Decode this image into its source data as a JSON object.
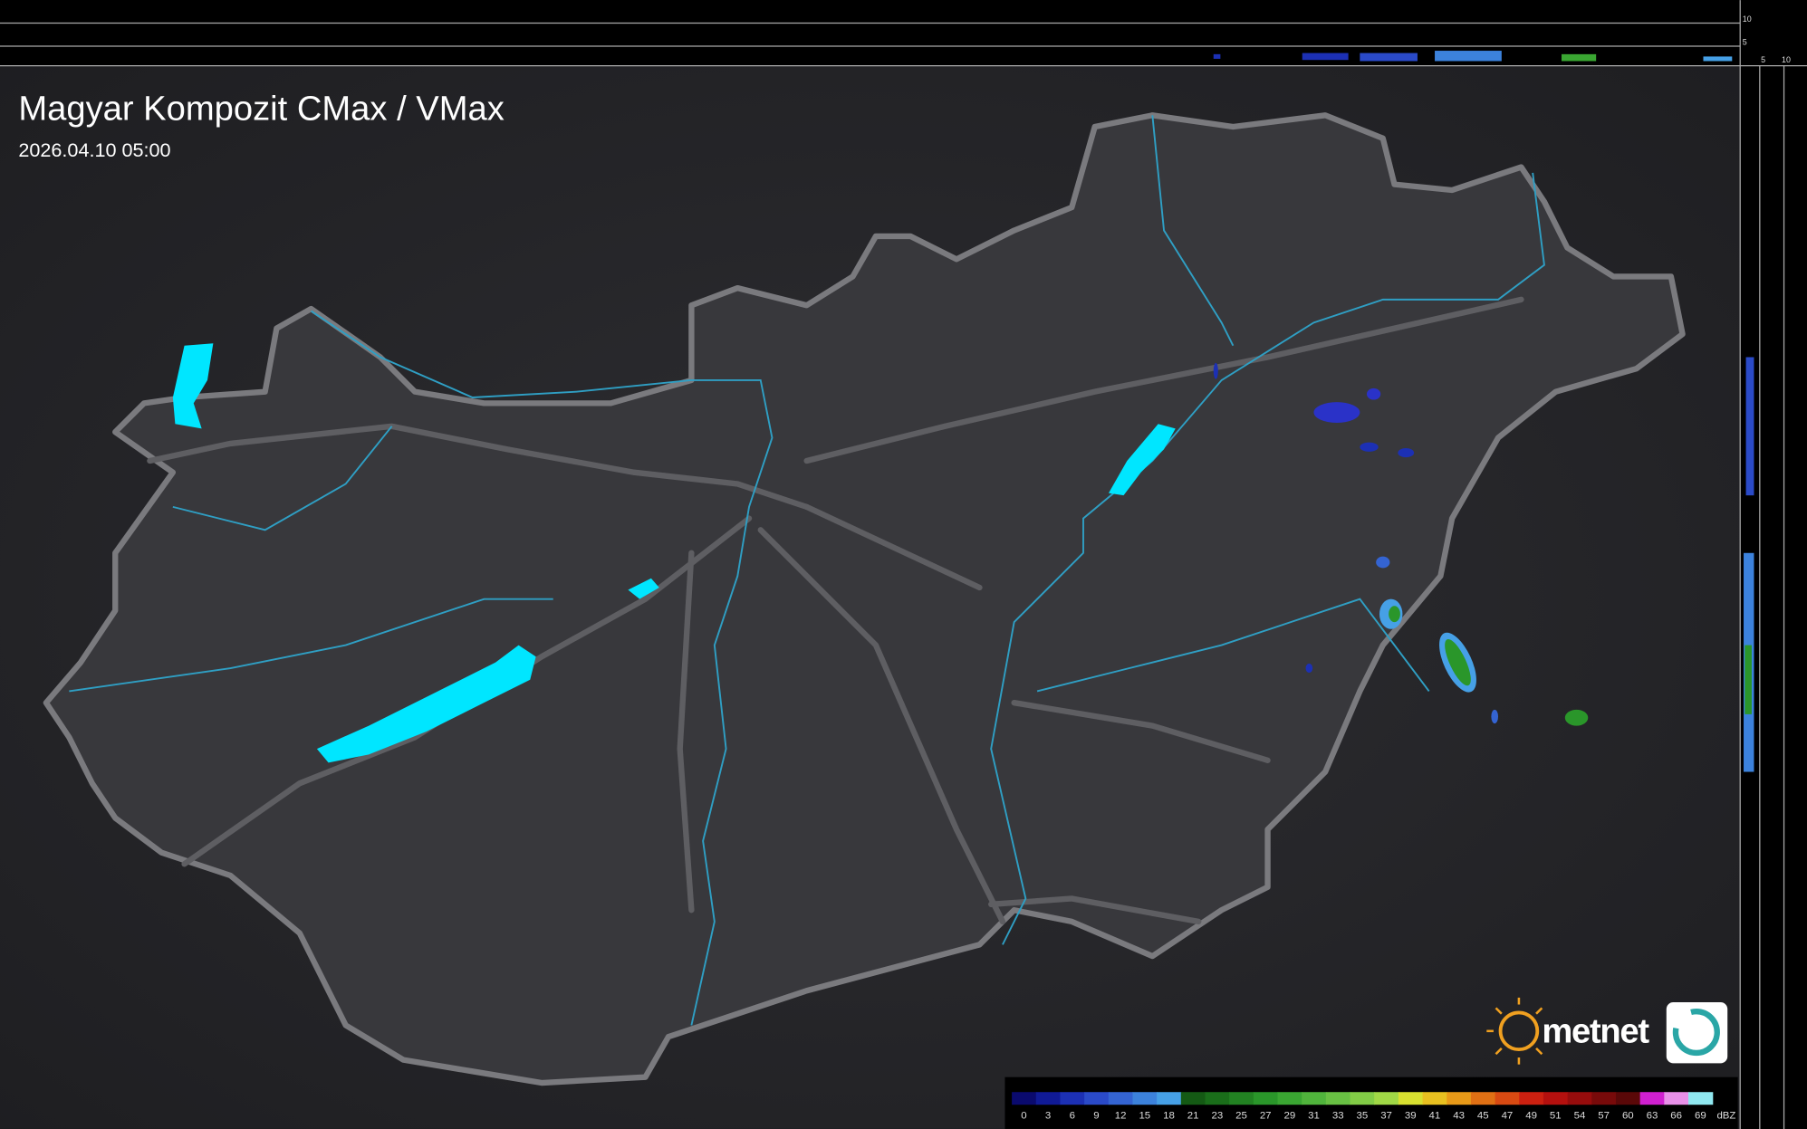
{
  "header": {
    "title": "Magyar Kompozit CMax / VMax",
    "timestamp": "2026.04.10 05:00"
  },
  "profile": {
    "top_ticks": [
      "10",
      "5"
    ],
    "right_ticks": [
      "5",
      "10"
    ]
  },
  "logo": {
    "text": "metnet"
  },
  "legend": {
    "unit": "dBZ",
    "steps": [
      {
        "value": 0,
        "color": "#0a0a6e"
      },
      {
        "value": 3,
        "color": "#101a96"
      },
      {
        "value": 6,
        "color": "#1c30b4"
      },
      {
        "value": 9,
        "color": "#2a4ac8"
      },
      {
        "value": 12,
        "color": "#3464d2"
      },
      {
        "value": 15,
        "color": "#3c82dc"
      },
      {
        "value": 18,
        "color": "#46a0e6"
      },
      {
        "value": 21,
        "color": "#145a14"
      },
      {
        "value": 23,
        "color": "#1a6e1a"
      },
      {
        "value": 25,
        "color": "#228222"
      },
      {
        "value": 27,
        "color": "#2a962a"
      },
      {
        "value": 29,
        "color": "#3aa632"
      },
      {
        "value": 31,
        "color": "#50b43c"
      },
      {
        "value": 33,
        "color": "#68c043"
      },
      {
        "value": 35,
        "color": "#82cc46"
      },
      {
        "value": 37,
        "color": "#a0d846"
      },
      {
        "value": 39,
        "color": "#d8e030"
      },
      {
        "value": 41,
        "color": "#e8c020"
      },
      {
        "value": 43,
        "color": "#e89a18"
      },
      {
        "value": 45,
        "color": "#e07014"
      },
      {
        "value": 47,
        "color": "#d84a12"
      },
      {
        "value": 49,
        "color": "#cc2010"
      },
      {
        "value": 51,
        "color": "#b4100e"
      },
      {
        "value": 54,
        "color": "#960c0c"
      },
      {
        "value": 57,
        "color": "#780a0a"
      },
      {
        "value": 60,
        "color": "#5a0808"
      },
      {
        "value": 63,
        "color": "#d020d0"
      },
      {
        "value": 66,
        "color": "#e890e8"
      },
      {
        "value": 69,
        "color": "#90e8f0"
      }
    ]
  }
}
